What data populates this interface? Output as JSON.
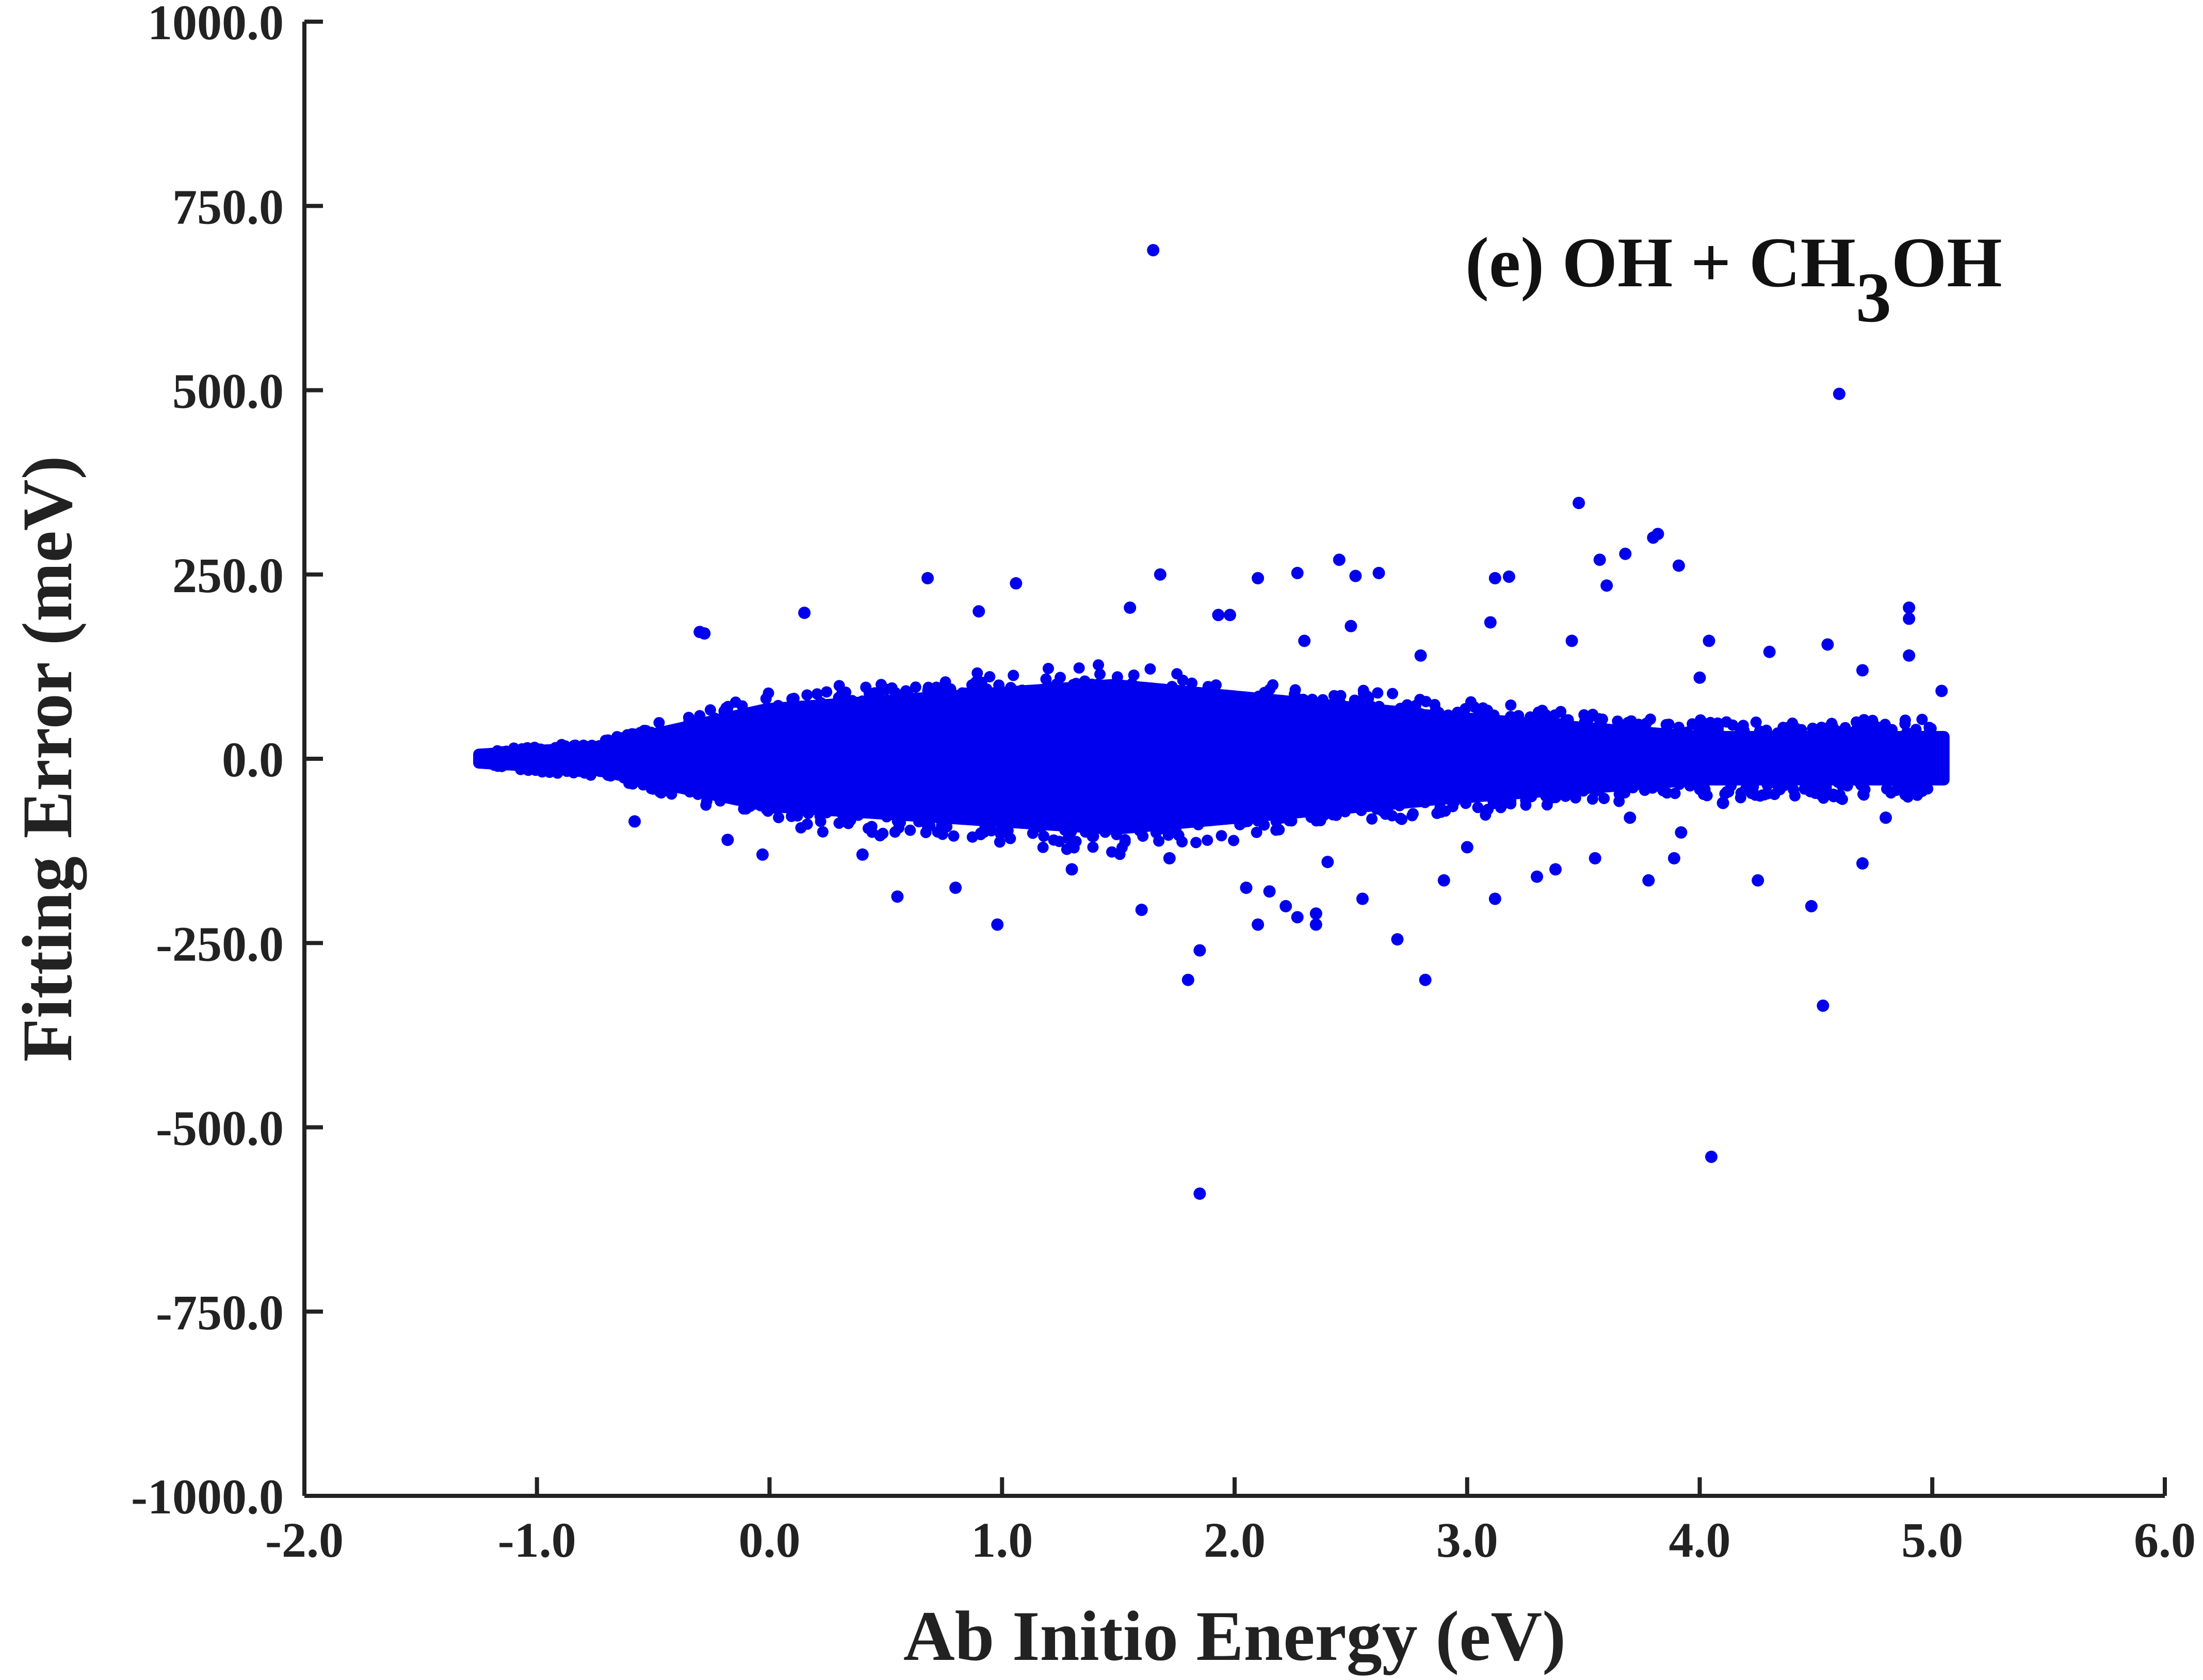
{
  "chart_data": {
    "type": "scatter",
    "xlabel": "Ab Initio Energy (eV)",
    "ylabel": "Fitting Error (meV)",
    "xlim": [
      -2.0,
      6.0
    ],
    "ylim": [
      -1000.0,
      1000.0
    ],
    "xticks": [
      -2.0,
      -1.0,
      0.0,
      1.0,
      2.0,
      3.0,
      4.0,
      5.0,
      6.0
    ],
    "yticks": [
      -1000.0,
      -750.0,
      -500.0,
      -250.0,
      0.0,
      250.0,
      500.0,
      750.0,
      1000.0
    ],
    "xtick_labels": [
      "-2.0",
      "-1.0",
      "0.0",
      "1.0",
      "2.0",
      "3.0",
      "4.0",
      "5.0",
      "6.0"
    ],
    "ytick_labels": [
      "-1000.0",
      "-750.0",
      "-500.0",
      "-250.0",
      "0.0",
      "250.0",
      "500.0",
      "750.0",
      "1000.0"
    ],
    "grid": false,
    "marker_color": "#0000ee",
    "annotation": {
      "prefix": "(e) OH + CH",
      "subscript": "3",
      "suffix": "OH"
    },
    "series": [
      {
        "points": [
          [
            1.65,
            690
          ],
          [
            4.6,
            495
          ],
          [
            3.48,
            347
          ],
          [
            3.82,
            305
          ],
          [
            3.8,
            300
          ],
          [
            3.57,
            270
          ],
          [
            3.68,
            278
          ],
          [
            3.91,
            262
          ],
          [
            3.6,
            235
          ],
          [
            4.9,
            205
          ],
          [
            4.9,
            190
          ],
          [
            4.9,
            140
          ],
          [
            4.55,
            155
          ],
          [
            5.04,
            92
          ],
          [
            4.7,
            120
          ],
          [
            4.3,
            145
          ],
          [
            4.04,
            160
          ],
          [
            1.68,
            250
          ],
          [
            2.1,
            245
          ],
          [
            2.27,
            252
          ],
          [
            2.45,
            270
          ],
          [
            2.52,
            248
          ],
          [
            2.62,
            252
          ],
          [
            3.12,
            245
          ],
          [
            3.18,
            247
          ],
          [
            0.68,
            245
          ],
          [
            1.06,
            238
          ],
          [
            0.9,
            200
          ],
          [
            0.15,
            198
          ],
          [
            -0.3,
            172
          ],
          [
            -0.28,
            170
          ],
          [
            1.55,
            205
          ],
          [
            1.93,
            195
          ],
          [
            1.98,
            195
          ],
          [
            2.5,
            180
          ],
          [
            3.1,
            185
          ],
          [
            2.3,
            160
          ],
          [
            2.8,
            140
          ],
          [
            3.45,
            160
          ],
          [
            4.0,
            110
          ],
          [
            1.85,
            -590
          ],
          [
            4.05,
            -540
          ],
          [
            4.53,
            -335
          ],
          [
            1.8,
            -300
          ],
          [
            2.82,
            -300
          ],
          [
            1.85,
            -260
          ],
          [
            2.7,
            -245
          ],
          [
            0.98,
            -225
          ],
          [
            2.1,
            -225
          ],
          [
            2.35,
            -225
          ],
          [
            2.22,
            -200
          ],
          [
            2.27,
            -215
          ],
          [
            2.35,
            -210
          ],
          [
            4.48,
            -200
          ],
          [
            4.25,
            -165
          ],
          [
            4.7,
            -142
          ],
          [
            4.8,
            -80
          ],
          [
            3.12,
            -190
          ],
          [
            2.05,
            -175
          ],
          [
            2.15,
            -180
          ],
          [
            0.55,
            -187
          ],
          [
            1.6,
            -205
          ],
          [
            2.55,
            -190
          ],
          [
            2.9,
            -165
          ],
          [
            3.3,
            -160
          ],
          [
            3.38,
            -150
          ],
          [
            3.55,
            -135
          ],
          [
            3.78,
            -165
          ],
          [
            3.89,
            -135
          ],
          [
            3.92,
            -100
          ],
          [
            3.7,
            -80
          ],
          [
            4.1,
            -60
          ],
          [
            0.8,
            -175
          ],
          [
            0.4,
            -130
          ],
          [
            -0.03,
            -130
          ],
          [
            -0.58,
            -85
          ],
          [
            -0.18,
            -110
          ],
          [
            1.3,
            -150
          ],
          [
            1.72,
            -135
          ],
          [
            2.4,
            -140
          ],
          [
            3.0,
            -120
          ]
        ]
      }
    ]
  }
}
